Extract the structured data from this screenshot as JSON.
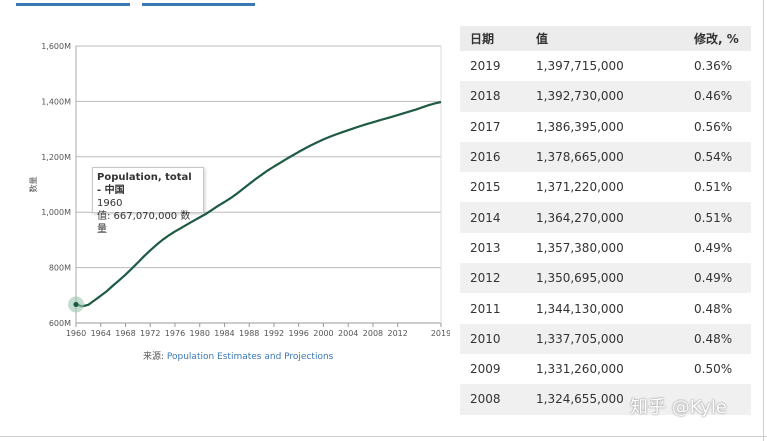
{
  "tabs": [
    "",
    ""
  ],
  "chart_data": {
    "type": "line",
    "title": "",
    "ylabel": "数量",
    "xlabel": "",
    "ylim": [
      600,
      1600
    ],
    "xlim": [
      1960,
      2019
    ],
    "y_ticks": [
      600,
      800,
      1000,
      1200,
      1400,
      1600
    ],
    "y_tick_labels": [
      "600M",
      "800M",
      "1,000M",
      "1,200M",
      "1,400M",
      "1,600M"
    ],
    "x_tick_labels": [
      "1960",
      "1964",
      "1968",
      "1972",
      "1976",
      "1980",
      "1984",
      "1988",
      "1992",
      "1996",
      "2000",
      "2004",
      "2008",
      "2012",
      "2019"
    ],
    "series": [
      {
        "color": "#1e5b42",
        "x": [
          1960,
          1961,
          1962,
          1963,
          1964,
          1965,
          1966,
          1967,
          1968,
          1969,
          1970,
          1971,
          1972,
          1973,
          1974,
          1975,
          1976,
          1977,
          1978,
          1979,
          1980,
          1981,
          1982,
          1983,
          1984,
          1985,
          1986,
          1987,
          1988,
          1989,
          1990,
          1991,
          1992,
          1993,
          1994,
          1995,
          1996,
          1997,
          1998,
          1999,
          2000,
          2001,
          2002,
          2003,
          2004,
          2005,
          2006,
          2007,
          2008,
          2009,
          2010,
          2011,
          2012,
          2013,
          2014,
          2015,
          2016,
          2017,
          2018,
          2019
        ],
        "values": [
          667.07,
          660.33,
          665.77,
          682.34,
          698.36,
          715.19,
          735.4,
          754.55,
          774.51,
          796.03,
          818.32,
          841.11,
          862.03,
          881.94,
          900.35,
          916.4,
          930.69,
          943.46,
          956.17,
          969.01,
          981.24,
          993.89,
          1008.63,
          1023.31,
          1036.83,
          1051.04,
          1066.79,
          1084.04,
          1101.63,
          1118.65,
          1135.19,
          1150.78,
          1164.97,
          1178.44,
          1191.84,
          1204.86,
          1217.55,
          1230.08,
          1241.94,
          1252.74,
          1262.65,
          1271.85,
          1280.4,
          1288.4,
          1296.08,
          1303.72,
          1311.02,
          1317.89,
          1324.66,
          1331.26,
          1337.71,
          1344.13,
          1350.7,
          1357.38,
          1364.27,
          1371.22,
          1378.67,
          1386.4,
          1392.73,
          1397.72
        ]
      }
    ],
    "highlight_point": {
      "x": 1960,
      "y": 667.07
    },
    "source_label": "来源: ",
    "source_link": "Population Estimates and Projections",
    "legend": "none",
    "grid": "horizontal"
  },
  "tooltip": {
    "title": "Population, total - 中国",
    "year": "1960",
    "value_line": "值: 667,070,000 数量"
  },
  "table": {
    "headers": [
      "日期",
      "值",
      "修改, %"
    ],
    "rows": [
      [
        "2019",
        "1,397,715,000",
        "0.36%"
      ],
      [
        "2018",
        "1,392,730,000",
        "0.46%"
      ],
      [
        "2017",
        "1,386,395,000",
        "0.56%"
      ],
      [
        "2016",
        "1,378,665,000",
        "0.54%"
      ],
      [
        "2015",
        "1,371,220,000",
        "0.51%"
      ],
      [
        "2014",
        "1,364,270,000",
        "0.51%"
      ],
      [
        "2013",
        "1,357,380,000",
        "0.49%"
      ],
      [
        "2012",
        "1,350,695,000",
        "0.49%"
      ],
      [
        "2011",
        "1,344,130,000",
        "0.48%"
      ],
      [
        "2010",
        "1,337,705,000",
        "0.48%"
      ],
      [
        "2009",
        "1,331,260,000",
        "0.50%"
      ],
      [
        "2008",
        "1,324,655,000",
        ""
      ]
    ]
  },
  "watermark": "知乎 @Kyle"
}
